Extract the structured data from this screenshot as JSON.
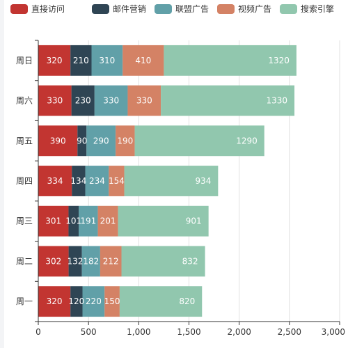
{
  "chart_data": {
    "type": "bar",
    "orientation": "horizontal",
    "stacked": true,
    "categories": [
      "周一",
      "周二",
      "周三",
      "周四",
      "周五",
      "周六",
      "周日"
    ],
    "series": [
      {
        "name": "直接访问",
        "color": "#c23531",
        "values": [
          320,
          302,
          301,
          334,
          390,
          330,
          320
        ]
      },
      {
        "name": "邮件营销",
        "color": "#2f4554",
        "values": [
          120,
          132,
          101,
          134,
          90,
          230,
          210
        ]
      },
      {
        "name": "联盟广告",
        "color": "#61a0a8",
        "values": [
          220,
          182,
          191,
          234,
          290,
          330,
          310
        ]
      },
      {
        "name": "视频广告",
        "color": "#d48265",
        "values": [
          150,
          212,
          201,
          154,
          190,
          330,
          410
        ]
      },
      {
        "name": "搜索引擎",
        "color": "#91c7ae",
        "values": [
          820,
          832,
          901,
          934,
          1290,
          1330,
          1320
        ]
      }
    ],
    "xlim": [
      0,
      3000
    ],
    "x_ticks": [
      "0",
      "500",
      "1,000",
      "1,500",
      "2,000",
      "2,500",
      "3,000"
    ],
    "grid": true,
    "legend_position": "top",
    "show_data_labels": true
  }
}
